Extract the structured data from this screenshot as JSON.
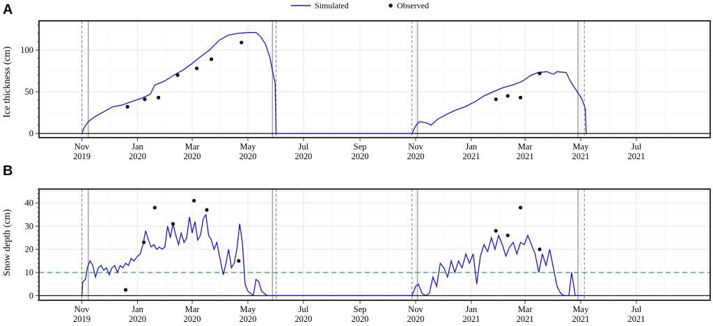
{
  "legend": {
    "simulated": "Simulated",
    "observed": "Observed"
  },
  "colors": {
    "simulated": "#1414d6",
    "observed": "#000000",
    "threshold": "#2e9e3e"
  },
  "chart_data": [
    {
      "panel": "A",
      "type": "line",
      "ylabel": "Ice thickness (cm)",
      "xlabel": "",
      "xlim": [
        "2019-09-15",
        "2021-09-20"
      ],
      "ylim": [
        -5,
        135
      ],
      "y_ticks": [
        0,
        50,
        100
      ],
      "x_ticks": [
        {
          "date": "2019-11-01",
          "label": [
            "Nov",
            "2019"
          ]
        },
        {
          "date": "2020-01-01",
          "label": [
            "Jan",
            "2020"
          ]
        },
        {
          "date": "2020-03-01",
          "label": [
            "Mar",
            "2020"
          ]
        },
        {
          "date": "2020-05-01",
          "label": [
            "May",
            "2020"
          ]
        },
        {
          "date": "2020-07-01",
          "label": [
            "Jul",
            "2020"
          ]
        },
        {
          "date": "2020-09-01",
          "label": [
            "Sep",
            "2020"
          ]
        },
        {
          "date": "2020-11-01",
          "label": [
            "Nov",
            "2020"
          ]
        },
        {
          "date": "2021-01-01",
          "label": [
            "Jan",
            "2021"
          ]
        },
        {
          "date": "2021-03-01",
          "label": [
            "Mar",
            "2021"
          ]
        },
        {
          "date": "2021-05-01",
          "label": [
            "May",
            "2021"
          ]
        },
        {
          "date": "2021-07-01",
          "label": [
            "Jul",
            "2021"
          ]
        }
      ],
      "dashed_vlines": [
        "2019-11-01",
        "2020-06-01",
        "2020-10-28",
        "2021-05-05"
      ],
      "solid_vlines": [
        "2019-11-08",
        "2020-05-28",
        "2020-11-03",
        "2021-04-28"
      ],
      "simulated": [
        [
          "2019-11-01",
          0
        ],
        [
          "2019-11-04",
          8
        ],
        [
          "2019-11-08",
          14
        ],
        [
          "2019-11-15",
          20
        ],
        [
          "2019-11-25",
          26
        ],
        [
          "2019-12-05",
          32
        ],
        [
          "2019-12-15",
          34
        ],
        [
          "2019-12-25",
          38
        ],
        [
          "2020-01-05",
          42
        ],
        [
          "2020-01-15",
          47
        ],
        [
          "2020-01-20",
          58
        ],
        [
          "2020-01-31",
          63
        ],
        [
          "2020-02-10",
          70
        ],
        [
          "2020-02-20",
          76
        ],
        [
          "2020-03-01",
          84
        ],
        [
          "2020-03-10",
          92
        ],
        [
          "2020-03-20",
          100
        ],
        [
          "2020-03-31",
          112
        ],
        [
          "2020-04-10",
          118
        ],
        [
          "2020-04-20",
          120
        ],
        [
          "2020-05-01",
          121
        ],
        [
          "2020-05-10",
          121
        ],
        [
          "2020-05-15",
          116
        ],
        [
          "2020-05-20",
          108
        ],
        [
          "2020-05-25",
          92
        ],
        [
          "2020-05-28",
          75
        ],
        [
          "2020-05-31",
          60
        ],
        [
          "2020-06-01",
          0
        ],
        [
          "2020-10-28",
          0
        ],
        [
          "2020-11-01",
          9
        ],
        [
          "2020-11-05",
          14
        ],
        [
          "2020-11-12",
          13
        ],
        [
          "2020-11-18",
          10
        ],
        [
          "2020-11-25",
          17
        ],
        [
          "2020-12-05",
          23
        ],
        [
          "2020-12-15",
          28
        ],
        [
          "2020-12-25",
          32
        ],
        [
          "2021-01-05",
          38
        ],
        [
          "2021-01-15",
          45
        ],
        [
          "2021-01-25",
          50
        ],
        [
          "2021-02-05",
          55
        ],
        [
          "2021-02-15",
          58
        ],
        [
          "2021-02-25",
          62
        ],
        [
          "2021-03-08",
          70
        ],
        [
          "2021-03-15",
          73
        ],
        [
          "2021-03-25",
          74
        ],
        [
          "2021-04-01",
          71
        ],
        [
          "2021-04-05",
          74
        ],
        [
          "2021-04-15",
          73
        ],
        [
          "2021-04-20",
          62
        ],
        [
          "2021-04-26",
          52
        ],
        [
          "2021-05-02",
          42
        ],
        [
          "2021-05-06",
          30
        ],
        [
          "2021-05-07",
          0
        ]
      ],
      "observed": [
        [
          "2019-12-21",
          32
        ],
        [
          "2020-01-09",
          41
        ],
        [
          "2020-01-24",
          43
        ],
        [
          "2020-02-14",
          70
        ],
        [
          "2020-03-06",
          78
        ],
        [
          "2020-03-22",
          89
        ],
        [
          "2020-04-24",
          109
        ],
        [
          "2021-01-28",
          41
        ],
        [
          "2021-02-10",
          45
        ],
        [
          "2021-02-24",
          43
        ],
        [
          "2021-03-17",
          72
        ]
      ]
    },
    {
      "panel": "B",
      "type": "line",
      "ylabel": "Snow depth (cm)",
      "xlabel": "",
      "xlim": [
        "2019-09-15",
        "2021-09-20"
      ],
      "ylim": [
        -2,
        46
      ],
      "y_ticks": [
        0,
        10,
        20,
        30,
        40
      ],
      "threshold": 10,
      "x_ticks": [
        {
          "date": "2019-11-01",
          "label": [
            "Nov",
            "2019"
          ]
        },
        {
          "date": "2020-01-01",
          "label": [
            "Jan",
            "2020"
          ]
        },
        {
          "date": "2020-03-01",
          "label": [
            "Mar",
            "2020"
          ]
        },
        {
          "date": "2020-05-01",
          "label": [
            "May",
            "2020"
          ]
        },
        {
          "date": "2020-07-01",
          "label": [
            "Jul",
            "2020"
          ]
        },
        {
          "date": "2020-09-01",
          "label": [
            "Sep",
            "2020"
          ]
        },
        {
          "date": "2020-11-01",
          "label": [
            "Nov",
            "2020"
          ]
        },
        {
          "date": "2021-01-01",
          "label": [
            "Jan",
            "2021"
          ]
        },
        {
          "date": "2021-03-01",
          "label": [
            "Mar",
            "2021"
          ]
        },
        {
          "date": "2021-05-01",
          "label": [
            "May",
            "2021"
          ]
        },
        {
          "date": "2021-07-01",
          "label": [
            "Jul",
            "2021"
          ]
        }
      ],
      "dashed_vlines": [
        "2019-11-01",
        "2020-06-01",
        "2020-10-28",
        "2021-05-05"
      ],
      "solid_vlines": [
        "2019-11-08",
        "2020-05-28",
        "2020-11-03",
        "2021-04-28"
      ],
      "simulated": [
        [
          "2019-11-01",
          0
        ],
        [
          "2019-11-02",
          6
        ],
        [
          "2019-11-05",
          7
        ],
        [
          "2019-11-07",
          12
        ],
        [
          "2019-11-10",
          15
        ],
        [
          "2019-11-13",
          13
        ],
        [
          "2019-11-16",
          8
        ],
        [
          "2019-11-19",
          12
        ],
        [
          "2019-11-22",
          13
        ],
        [
          "2019-11-25",
          11
        ],
        [
          "2019-11-28",
          12
        ],
        [
          "2019-12-01",
          9
        ],
        [
          "2019-12-04",
          12
        ],
        [
          "2019-12-07",
          13
        ],
        [
          "2019-12-10",
          10
        ],
        [
          "2019-12-13",
          13
        ],
        [
          "2019-12-16",
          12
        ],
        [
          "2019-12-19",
          14
        ],
        [
          "2019-12-22",
          13
        ],
        [
          "2019-12-25",
          16
        ],
        [
          "2019-12-28",
          15
        ],
        [
          "2020-01-01",
          17
        ],
        [
          "2020-01-04",
          18
        ],
        [
          "2020-01-07",
          22
        ],
        [
          "2020-01-10",
          28
        ],
        [
          "2020-01-13",
          24
        ],
        [
          "2020-01-16",
          21
        ],
        [
          "2020-01-19",
          22
        ],
        [
          "2020-01-22",
          20
        ],
        [
          "2020-01-25",
          21
        ],
        [
          "2020-01-28",
          20
        ],
        [
          "2020-01-31",
          21
        ],
        [
          "2020-02-03",
          30
        ],
        [
          "2020-02-06",
          25
        ],
        [
          "2020-02-09",
          31
        ],
        [
          "2020-02-12",
          26
        ],
        [
          "2020-02-15",
          22
        ],
        [
          "2020-02-18",
          27
        ],
        [
          "2020-02-21",
          23
        ],
        [
          "2020-02-24",
          25
        ],
        [
          "2020-02-27",
          34
        ],
        [
          "2020-03-01",
          27
        ],
        [
          "2020-03-04",
          32
        ],
        [
          "2020-03-07",
          24
        ],
        [
          "2020-03-10",
          26
        ],
        [
          "2020-03-13",
          33
        ],
        [
          "2020-03-16",
          35
        ],
        [
          "2020-03-19",
          26
        ],
        [
          "2020-03-22",
          24
        ],
        [
          "2020-03-25",
          20
        ],
        [
          "2020-03-28",
          23
        ],
        [
          "2020-04-01",
          15
        ],
        [
          "2020-04-04",
          9
        ],
        [
          "2020-04-07",
          14
        ],
        [
          "2020-04-10",
          20
        ],
        [
          "2020-04-13",
          12
        ],
        [
          "2020-04-16",
          14
        ],
        [
          "2020-04-19",
          20
        ],
        [
          "2020-04-22",
          31
        ],
        [
          "2020-04-25",
          23
        ],
        [
          "2020-04-28",
          5
        ],
        [
          "2020-05-01",
          2
        ],
        [
          "2020-05-04",
          1
        ],
        [
          "2020-05-07",
          0
        ],
        [
          "2020-05-10",
          7
        ],
        [
          "2020-05-13",
          6
        ],
        [
          "2020-05-16",
          2
        ],
        [
          "2020-05-22",
          0
        ],
        [
          "2020-06-01",
          0
        ],
        [
          "2020-10-28",
          0
        ],
        [
          "2020-11-01",
          4
        ],
        [
          "2020-11-04",
          5
        ],
        [
          "2020-11-08",
          1
        ],
        [
          "2020-11-12",
          0
        ],
        [
          "2020-11-16",
          1
        ],
        [
          "2020-11-20",
          8
        ],
        [
          "2020-11-24",
          4
        ],
        [
          "2020-11-28",
          14
        ],
        [
          "2020-12-02",
          12
        ],
        [
          "2020-12-06",
          8
        ],
        [
          "2020-12-10",
          15
        ],
        [
          "2020-12-14",
          10
        ],
        [
          "2020-12-18",
          15
        ],
        [
          "2020-12-22",
          12
        ],
        [
          "2020-12-26",
          18
        ],
        [
          "2020-12-30",
          14
        ],
        [
          "2021-01-03",
          18
        ],
        [
          "2021-01-07",
          5
        ],
        [
          "2021-01-11",
          17
        ],
        [
          "2021-01-15",
          22
        ],
        [
          "2021-01-19",
          19
        ],
        [
          "2021-01-23",
          25
        ],
        [
          "2021-01-27",
          20
        ],
        [
          "2021-01-31",
          26
        ],
        [
          "2021-02-04",
          22
        ],
        [
          "2021-02-08",
          17
        ],
        [
          "2021-02-12",
          21
        ],
        [
          "2021-02-16",
          23
        ],
        [
          "2021-02-20",
          18
        ],
        [
          "2021-02-24",
          23
        ],
        [
          "2021-02-28",
          22
        ],
        [
          "2021-03-04",
          26
        ],
        [
          "2021-03-08",
          22
        ],
        [
          "2021-03-12",
          18
        ],
        [
          "2021-03-16",
          10
        ],
        [
          "2021-03-20",
          18
        ],
        [
          "2021-03-24",
          13
        ],
        [
          "2021-03-28",
          20
        ],
        [
          "2021-04-01",
          12
        ],
        [
          "2021-04-05",
          4
        ],
        [
          "2021-04-09",
          1
        ],
        [
          "2021-04-13",
          0
        ],
        [
          "2021-04-18",
          0
        ],
        [
          "2021-04-21",
          10
        ],
        [
          "2021-04-25",
          0
        ],
        [
          "2021-05-05",
          0
        ]
      ],
      "observed": [
        [
          "2019-12-19",
          2.5
        ],
        [
          "2020-01-08",
          23
        ],
        [
          "2020-01-20",
          38
        ],
        [
          "2020-02-09",
          31
        ],
        [
          "2020-03-03",
          41
        ],
        [
          "2020-03-17",
          37
        ],
        [
          "2020-04-21",
          15
        ],
        [
          "2021-01-28",
          28
        ],
        [
          "2021-02-10",
          26
        ],
        [
          "2021-02-24",
          38
        ],
        [
          "2021-03-17",
          20
        ]
      ]
    }
  ]
}
